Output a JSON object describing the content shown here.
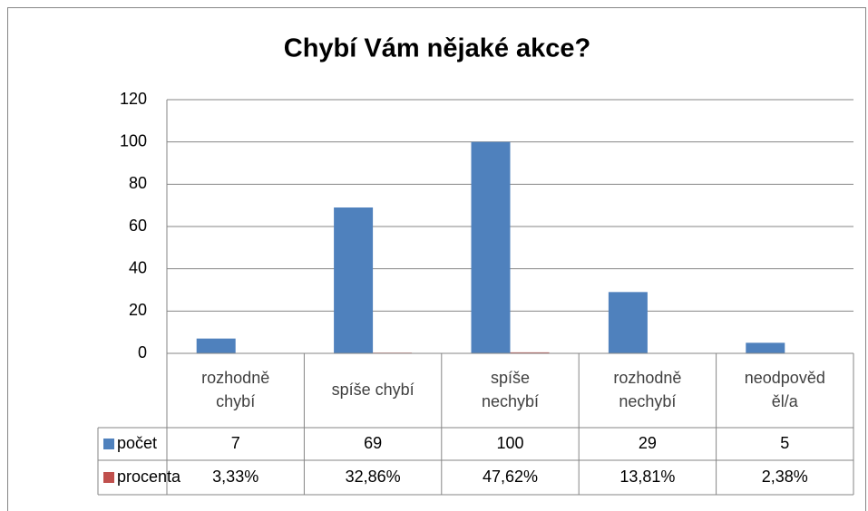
{
  "chart_data": {
    "type": "bar",
    "title": "Chybí Vám nějaké akce?",
    "categories": [
      [
        "rozhodně",
        "chybí"
      ],
      [
        "spíše chybí"
      ],
      [
        "spíše",
        "nechybí"
      ],
      [
        "rozhodně",
        "nechybí"
      ],
      [
        "neodpověd",
        "ěl/a"
      ]
    ],
    "series": [
      {
        "name": "počet",
        "color": "#4f81bd",
        "values": [
          7,
          69,
          100,
          29,
          5
        ]
      },
      {
        "name": "procenta",
        "color": "#c0504d",
        "values": [
          0.0333,
          0.3286,
          0.4762,
          0.1381,
          0.0238
        ],
        "value_labels": [
          "3,33%",
          "32,86%",
          "47,62%",
          "13,81%",
          "2,38%"
        ]
      }
    ],
    "ylim": [
      0,
      120
    ],
    "yticks": [
      0,
      20,
      40,
      60,
      80,
      100,
      120
    ],
    "grid": true,
    "data_table": true
  }
}
